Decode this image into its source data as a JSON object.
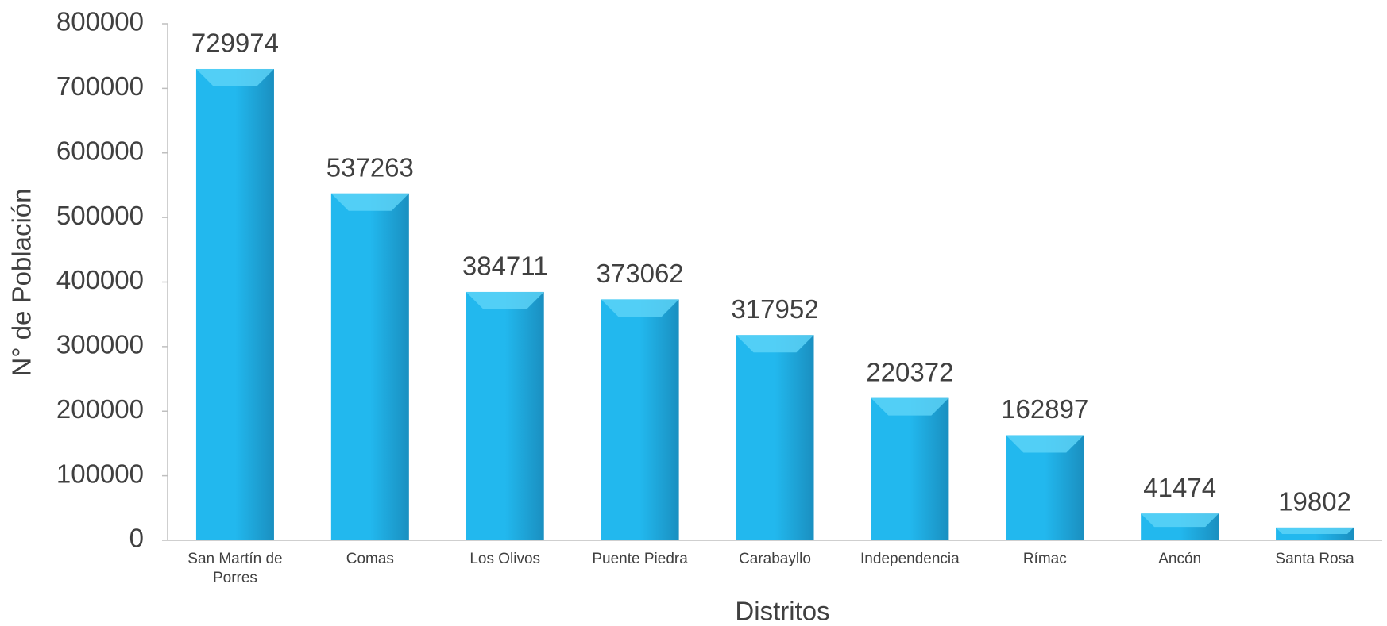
{
  "chart_data": {
    "type": "bar",
    "x_label": "Distritos",
    "y_label": "N° de Población",
    "categories": [
      "San Martín de Porres",
      "Comas",
      "Los Olivos",
      "Puente Piedra",
      "Carabayllo",
      "Independencia",
      "Rímac",
      "Ancón",
      "Santa Rosa"
    ],
    "values": [
      729974,
      537263,
      384711,
      373062,
      317952,
      220372,
      162897,
      41474,
      19802
    ],
    "color": "#22b8ee",
    "ylim": [
      0,
      800000
    ],
    "yticks": [
      0,
      100000,
      200000,
      300000,
      400000,
      500000,
      600000,
      700000,
      800000
    ],
    "grid": false
  }
}
